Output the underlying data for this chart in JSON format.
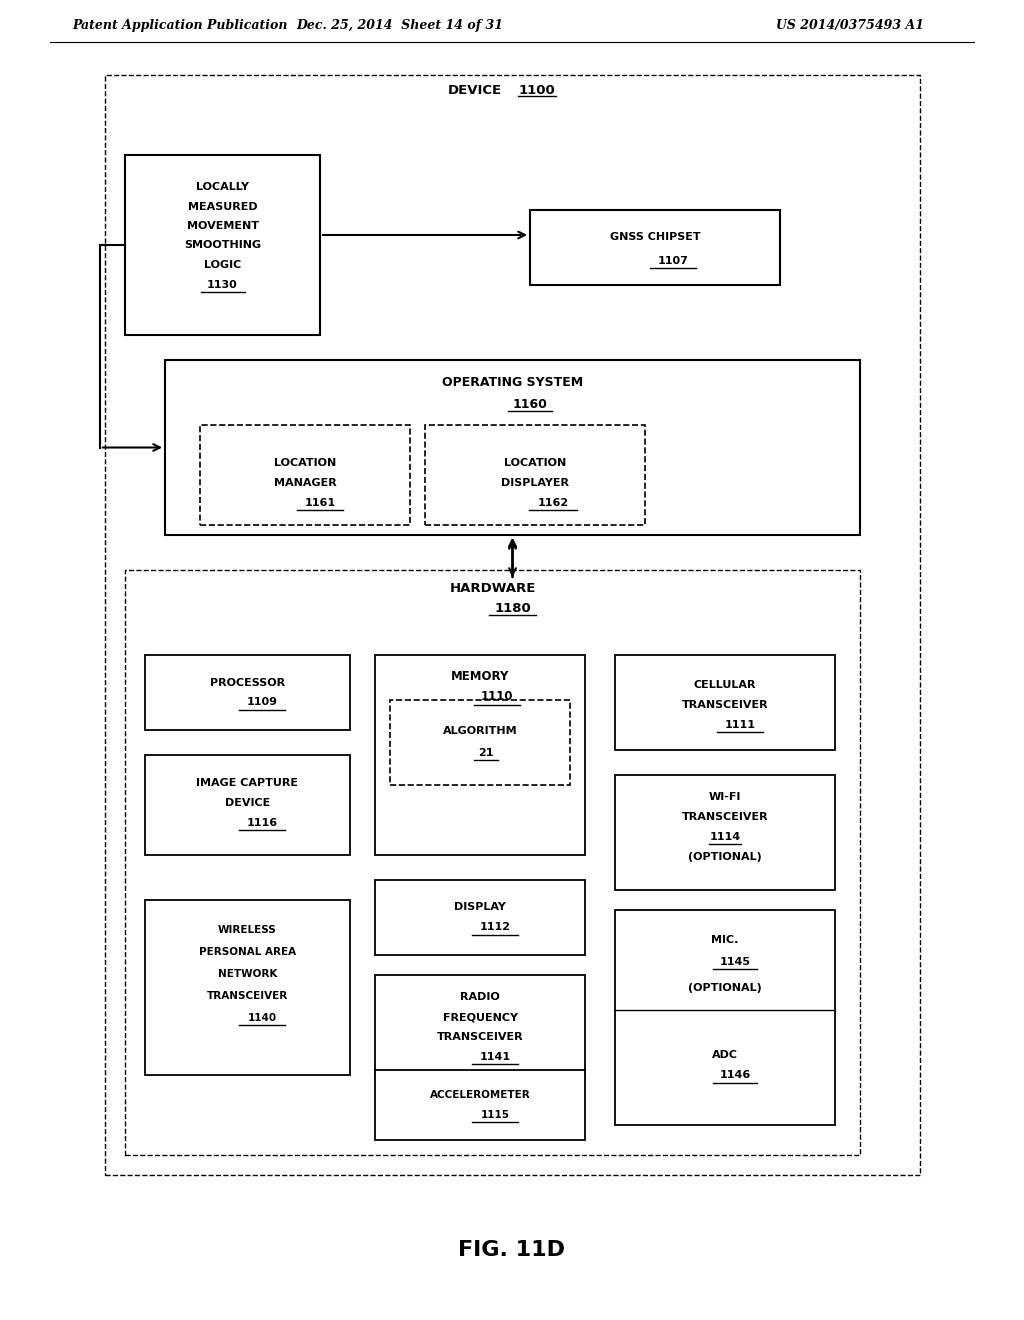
{
  "header_left": "Patent Application Publication",
  "header_mid": "Dec. 25, 2014  Sheet 14 of 31",
  "header_right": "US 2014/0375493 A1",
  "fig_label": "FIG. 11D",
  "bg_color": "#ffffff",
  "text_color": "#000000",
  "font_size_header": 9,
  "font_size_box": 7.5,
  "font_size_fig": 16
}
